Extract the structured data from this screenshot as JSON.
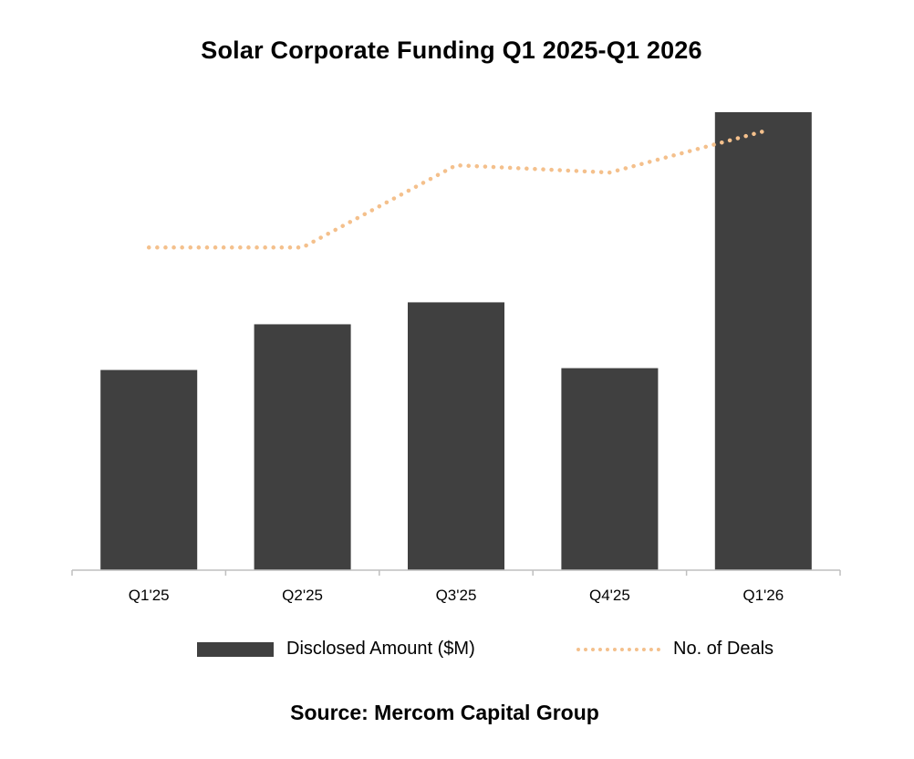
{
  "chart_data": {
    "type": "bar",
    "title": "Solar Corporate Funding Q1 2025-Q1 2026",
    "categories": [
      "Q1'25",
      "Q2'25",
      "Q3'25",
      "Q4'25",
      "Q1'26"
    ],
    "series": [
      {
        "name": "Disclosed Amount ($M)",
        "type": "bar",
        "color": "#404040",
        "values": [
          2.19,
          2.69,
          2.93,
          2.21,
          5.01
        ]
      },
      {
        "name": "No. of Deals",
        "type": "line",
        "style": "dotted",
        "color": "#f4c08c",
        "values": [
          3.53,
          3.53,
          4.43,
          4.35,
          4.8
        ]
      }
    ],
    "ylim": [
      0,
      5
    ],
    "y_axis_visible": false,
    "grid": false,
    "legend_position": "bottom",
    "source": "Source: Mercom Capital Group"
  }
}
